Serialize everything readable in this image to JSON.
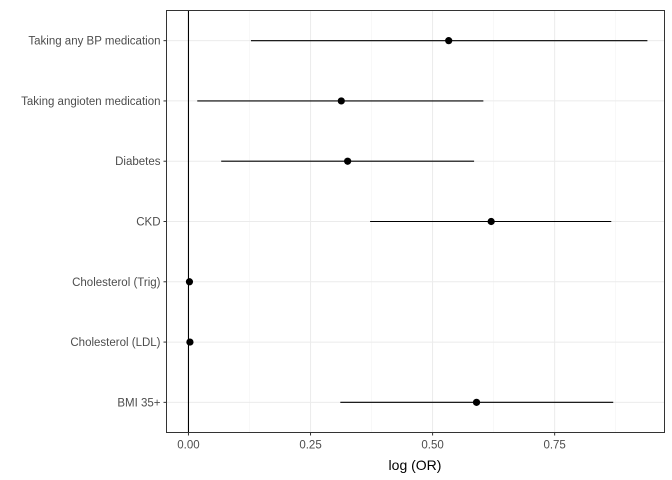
{
  "chart_data": {
    "type": "scatter",
    "subtype": "forest-plot",
    "title": "",
    "xlabel": "log (OR)",
    "ylabel": "",
    "xlim": [
      -0.045,
      0.975
    ],
    "x_ticks": [
      0.0,
      0.25,
      0.5,
      0.75
    ],
    "x_tick_labels": [
      "0.00",
      "0.25",
      "0.50",
      "0.75"
    ],
    "reference_line_x": 0,
    "grid": true,
    "legend": "none",
    "categories": [
      "Taking any BP medication",
      "Taking angioten medication",
      "Diabetes",
      "CKD",
      "Cholesterol (Trig)",
      "Cholesterol (LDL)",
      "BMI 35+"
    ],
    "estimates": [
      0.533,
      0.313,
      0.326,
      0.62,
      0.002,
      0.003,
      0.59
    ],
    "lower": [
      0.128,
      0.018,
      0.067,
      0.372,
      0.002,
      0.003,
      0.311
    ],
    "upper": [
      0.94,
      0.604,
      0.585,
      0.866,
      0.002,
      0.003,
      0.87
    ]
  }
}
